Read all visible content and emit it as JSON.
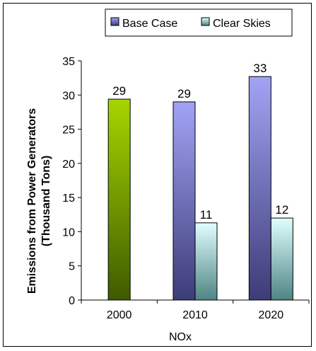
{
  "chart_data": {
    "type": "bar",
    "title": "",
    "xlabel": "NOx",
    "ylabel_line1": "Emissions from Power Generators",
    "ylabel_line2": "(Thousand Tons)",
    "ylim": [
      0,
      35
    ],
    "yticks": [
      0,
      5,
      10,
      15,
      20,
      25,
      30,
      35
    ],
    "grid": false,
    "legend_position": "top",
    "categories": [
      "2000",
      "2010",
      "2020"
    ],
    "series": [
      {
        "name": "Base Case",
        "color_top": "#a3a3f5",
        "color_bottom": "#3c3c78",
        "values": [
          null,
          29.0,
          32.7
        ],
        "labels": [
          "",
          "29",
          "33"
        ]
      },
      {
        "name": "Clear Skies",
        "color_top": "#e0ffff",
        "color_bottom": "#4f8484",
        "values": [
          null,
          11.3,
          12.0
        ],
        "labels": [
          "",
          "11",
          "12"
        ]
      }
    ],
    "baseline": {
      "category": "2000",
      "value": 29.4,
      "label": "29",
      "color_top": "#a6d600",
      "color_bottom": "#3f5b00"
    }
  }
}
